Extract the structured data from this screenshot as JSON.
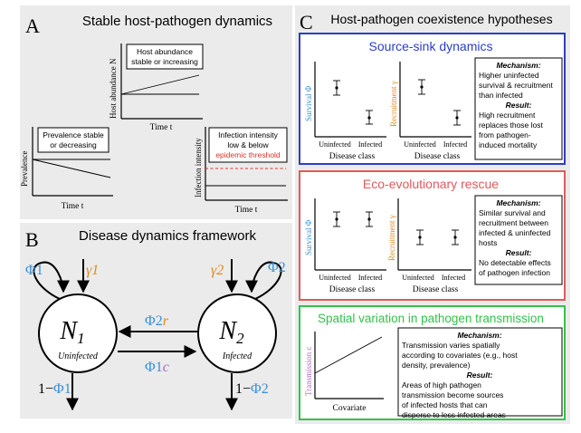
{
  "panelA": {
    "letter": "A",
    "title": "Stable host-pathogen dynamics",
    "abundance": {
      "ylabel": "Host abundance N",
      "xlabel": "Time t",
      "box": [
        "Host abundance",
        "stable or increasing"
      ]
    },
    "prevalence": {
      "ylabel": "Prevalence",
      "xlabel": "Time t",
      "box": [
        "Prevalence stable",
        "or decreasing"
      ]
    },
    "intensity": {
      "ylabel": "Infection intensity",
      "xlabel": "Time t",
      "box": [
        "Infection intensity",
        "low & below",
        "epidemic threshold"
      ]
    }
  },
  "panelB": {
    "letter": "B",
    "title": "Disease dynamics framework",
    "node1": {
      "label": "N",
      "sub": "1",
      "state": "Uninfected"
    },
    "node2": {
      "label": "N",
      "sub": "2",
      "state": "Infected"
    },
    "phi1": "Φ1",
    "gamma1": "γ1",
    "gamma2": "γ2",
    "phi2": "Φ2",
    "phi2r_phi": "Φ2",
    "phi2r_r": "r",
    "phi1c_phi": "Φ1",
    "phi1c_c": "c",
    "loss1_prefix": "1−",
    "loss1_phi": "Φ1",
    "loss2_prefix": "1−",
    "loss2_phi": "Φ2"
  },
  "panelC": {
    "letter": "C",
    "title": "Host-pathogen coexistence hypotheses",
    "sourceSink": {
      "title": "Source-sink dynamics",
      "survival": {
        "ylabel": "Survival Φ",
        "xticks": [
          "Uninfected",
          "Infected"
        ],
        "xlabel": "Disease class"
      },
      "recruitment": {
        "ylabel": "Recruitment γ",
        "xticks": [
          "Uninfected",
          "Infected"
        ],
        "xlabel": "Disease class"
      },
      "mechanism_head": "Mechanism:",
      "mechanism": [
        "Higher uninfected",
        "survival & recruitment",
        "than infected"
      ],
      "result_head": "Result:",
      "result": [
        "High recruitment",
        "replaces those lost",
        "from pathogen-",
        "induced mortality"
      ]
    },
    "ecoEvo": {
      "title": "Eco-evolutionary rescue",
      "survival": {
        "ylabel": "Survival Φ",
        "xticks": [
          "Uninfected",
          "Infected"
        ],
        "xlabel": "Disease class"
      },
      "recruitment": {
        "ylabel": "Recruitment γ",
        "xticks": [
          "Uninfected",
          "Infected"
        ],
        "xlabel": "Disease class"
      },
      "mechanism_head": "Mechanism:",
      "mechanism": [
        "Similar survival and",
        "recruitment between",
        "infected & uninfected",
        "hosts"
      ],
      "result_head": "Result:",
      "result": [
        "No detectable effects",
        "of pathogen infection"
      ]
    },
    "spatial": {
      "title": "Spatial variation in pathogen transmission",
      "ylabel": "Transmission c",
      "xlabel": "Covariate",
      "mechanism_head": "Mechanism:",
      "mechanism": [
        "Transmission varies spatially",
        "according to covariates (e.g., host",
        "density, prevalence)"
      ],
      "result_head": "Result:",
      "result": [
        "Areas of high pathogen",
        "transmission become sources",
        "of infected hosts that can",
        "disperse to less infected areas"
      ]
    }
  },
  "colors": {
    "phi": "#3a8fd6",
    "gamma": "#e08a1e",
    "threshold": "#e0302a",
    "transmission": "#b061c8",
    "sourceSinkBorder": "#2b3fc4",
    "ecoEvoBorder": "#e25a5a",
    "spatialBorder": "#33c24a",
    "panelBg": "#ebebeb"
  }
}
